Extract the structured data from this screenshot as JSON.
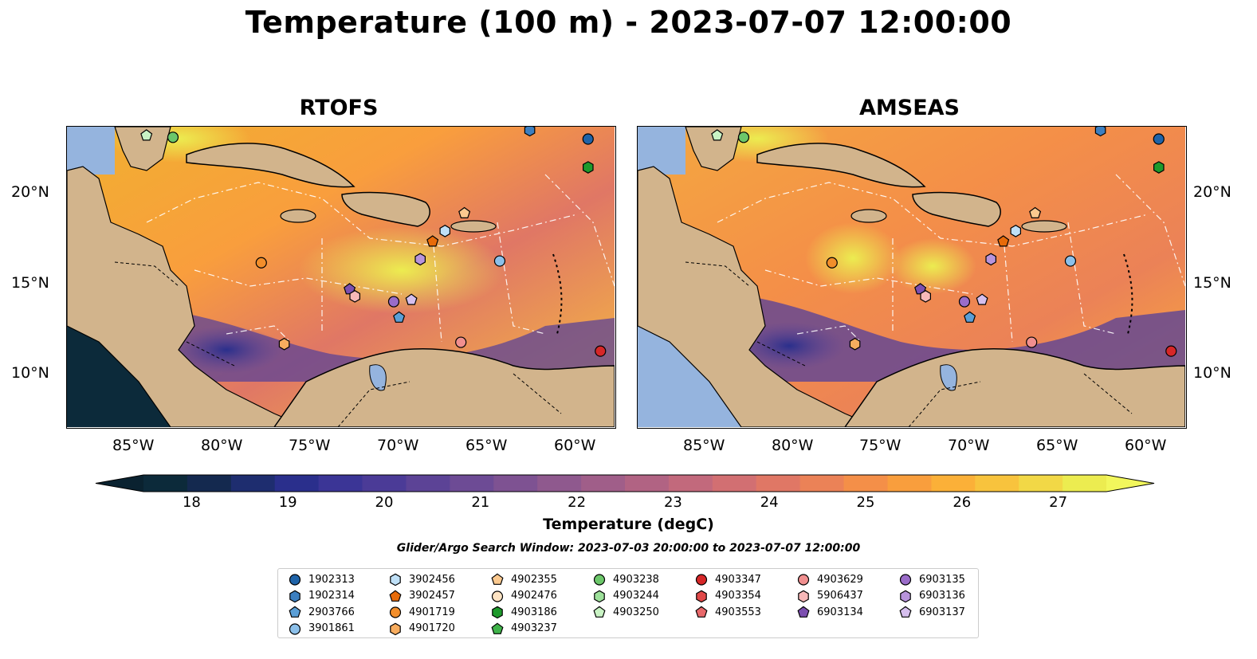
{
  "title": "Temperature (100 m) - 2023-07-07 12:00:00",
  "panels": [
    {
      "title": "RTOFS"
    },
    {
      "title": "AMSEAS"
    }
  ],
  "lat_labels": [
    "20°N",
    "15°N",
    "10°N"
  ],
  "lon_labels": [
    "85°W",
    "80°W",
    "75°W",
    "70°W",
    "65°W",
    "60°W"
  ],
  "map_extent": {
    "lon": [
      -89.5,
      -58.5
    ],
    "lat": [
      7.0,
      24.0
    ]
  },
  "colorbar": {
    "label": "Temperature (degC)",
    "min": 17.5,
    "max": 27.5,
    "ticks": [
      "18",
      "19",
      "20",
      "21",
      "22",
      "23",
      "24",
      "25",
      "26",
      "27"
    ],
    "colors": [
      "#0c2a3a",
      "#14294f",
      "#1e2d6f",
      "#2a2f8c",
      "#3b3596",
      "#4b3b97",
      "#5c4396",
      "#6d4b95",
      "#7e5292",
      "#8f598e",
      "#a05e89",
      "#b16383",
      "#c2697c",
      "#d26f72",
      "#e07765",
      "#eb8257",
      "#f48f48",
      "#f99e3d",
      "#fbb038",
      "#f8c33d",
      "#f2d846",
      "#ecec50"
    ],
    "extend_min_color": "#0a2230",
    "extend_max_color": "#f2f75c"
  },
  "search_window": "Glider/Argo Search Window: 2023-07-03 20:00:00 to 2023-07-07 12:00:00",
  "legend": [
    {
      "id": "1902313",
      "marker": "circle",
      "color": "#1f63a8"
    },
    {
      "id": "1902314",
      "marker": "hexagon",
      "color": "#3c7fc0"
    },
    {
      "id": "2903766",
      "marker": "pentagon",
      "color": "#5b9fd6"
    },
    {
      "id": "3901861",
      "marker": "circle",
      "color": "#8cc0ea"
    },
    {
      "id": "3902456",
      "marker": "hexagon",
      "color": "#bfe0f7"
    },
    {
      "id": "3902457",
      "marker": "pentagon",
      "color": "#e76b0a"
    },
    {
      "id": "4901719",
      "marker": "circle",
      "color": "#f28e2b"
    },
    {
      "id": "4901720",
      "marker": "hexagon",
      "color": "#f7ac5e"
    },
    {
      "id": "4902355",
      "marker": "pentagon",
      "color": "#fbc98f"
    },
    {
      "id": "4902476",
      "marker": "circle",
      "color": "#fde3c3"
    },
    {
      "id": "4903186",
      "marker": "hexagon",
      "color": "#1e9a2c"
    },
    {
      "id": "4903237",
      "marker": "pentagon",
      "color": "#3fb34a"
    },
    {
      "id": "4903238",
      "marker": "circle",
      "color": "#6cc76a"
    },
    {
      "id": "4903244",
      "marker": "hexagon",
      "color": "#9de09a"
    },
    {
      "id": "4903250",
      "marker": "pentagon",
      "color": "#c9f3c4"
    },
    {
      "id": "4903347",
      "marker": "circle",
      "color": "#d62728"
    },
    {
      "id": "4903354",
      "marker": "hexagon",
      "color": "#e04848"
    },
    {
      "id": "4903553",
      "marker": "pentagon",
      "color": "#e8686a"
    },
    {
      "id": "4903629",
      "marker": "circle",
      "color": "#f08f8f"
    },
    {
      "id": "5906437",
      "marker": "hexagon",
      "color": "#f7b8b8"
    },
    {
      "id": "6903134",
      "marker": "pentagon",
      "color": "#7c4fb0"
    },
    {
      "id": "6903135",
      "marker": "circle",
      "color": "#9a6cc9"
    },
    {
      "id": "6903136",
      "marker": "hexagon",
      "color": "#b894dc"
    },
    {
      "id": "6903137",
      "marker": "pentagon",
      "color": "#d6bfee"
    }
  ],
  "observations": [
    {
      "id": "1902313",
      "lon": -60.0,
      "lat": 23.3
    },
    {
      "id": "1902314",
      "lon": -63.3,
      "lat": 23.8
    },
    {
      "id": "4903186",
      "lon": -60.0,
      "lat": 21.7
    },
    {
      "id": "4903250",
      "lon": -85.0,
      "lat": 23.5
    },
    {
      "id": "4903238",
      "lon": -83.5,
      "lat": 23.4
    },
    {
      "id": "4902355",
      "lon": -67.0,
      "lat": 19.1
    },
    {
      "id": "3902456",
      "lon": -68.1,
      "lat": 18.1
    },
    {
      "id": "3902457",
      "lon": -68.8,
      "lat": 17.5
    },
    {
      "id": "4901719",
      "lon": -78.5,
      "lat": 16.3
    },
    {
      "id": "6903136",
      "lon": -69.5,
      "lat": 16.5
    },
    {
      "id": "3901861",
      "lon": -65.0,
      "lat": 16.4
    },
    {
      "id": "6903134",
      "lon": -73.5,
      "lat": 14.8
    },
    {
      "id": "5906437",
      "lon": -73.2,
      "lat": 14.4
    },
    {
      "id": "6903135",
      "lon": -71.0,
      "lat": 14.1
    },
    {
      "id": "6903137",
      "lon": -70.0,
      "lat": 14.2
    },
    {
      "id": "2903766",
      "lon": -70.7,
      "lat": 13.2
    },
    {
      "id": "4901720",
      "lon": -77.2,
      "lat": 11.7
    },
    {
      "id": "4903629",
      "lon": -67.2,
      "lat": 11.8
    },
    {
      "id": "4903347",
      "lon": -59.3,
      "lat": 11.3
    }
  ]
}
